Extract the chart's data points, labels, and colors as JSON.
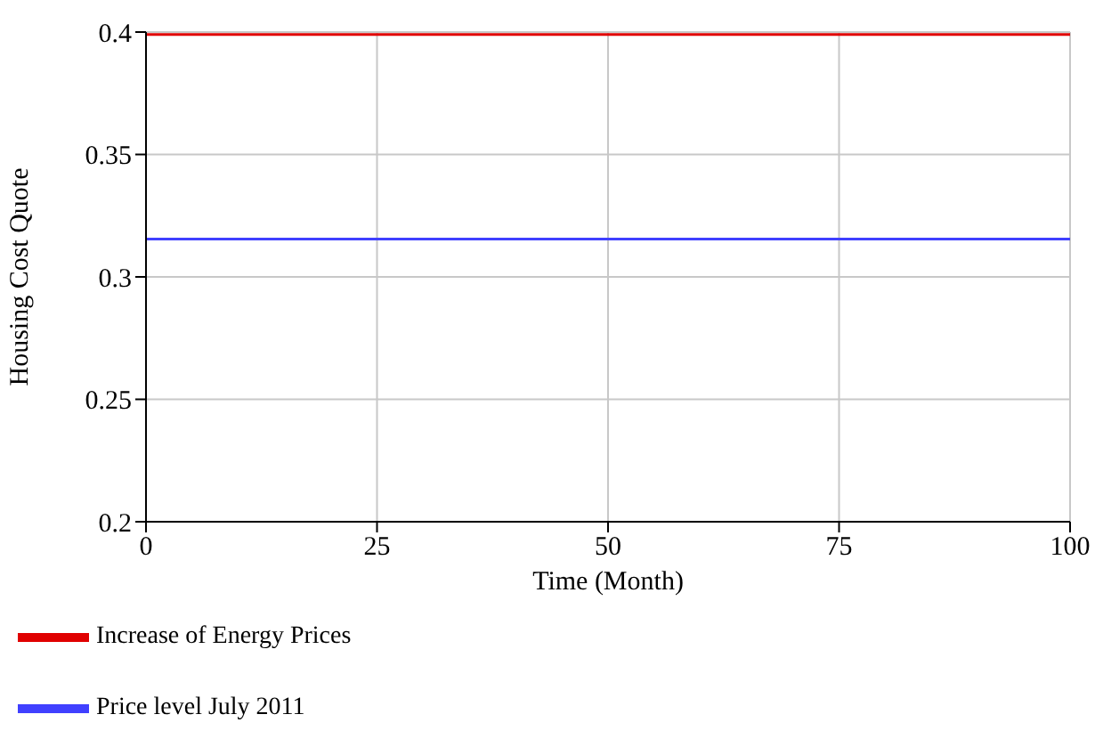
{
  "chart_data": {
    "type": "line",
    "xlabel": "Time (Month)",
    "ylabel": "Housing Cost Quote",
    "x": [
      0,
      100
    ],
    "series": [
      {
        "name": "Price level July 2011",
        "color": "#4040ff",
        "values": [
          0.3155,
          0.3155
        ]
      },
      {
        "name": "Increase of Energy Prices",
        "color": "#e00000",
        "values": [
          0.399,
          0.399
        ]
      }
    ],
    "xlim": [
      0,
      100
    ],
    "xticks": [
      0,
      25,
      50,
      75,
      100
    ],
    "ylim": [
      0.2,
      0.4
    ],
    "yticks": [
      0.2,
      0.25,
      0.3,
      0.35,
      0.4
    ],
    "grid": true,
    "legend": "bottom",
    "marker": "none",
    "line_style": "solid"
  }
}
